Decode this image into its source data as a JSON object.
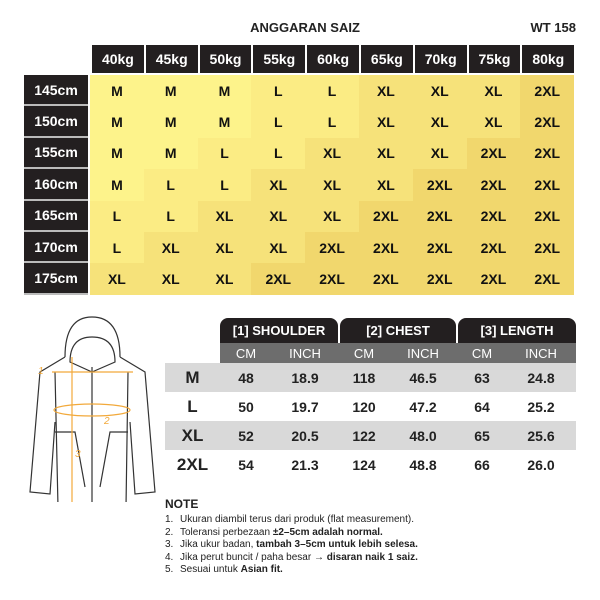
{
  "header": {
    "title": "ANGGARAN SAIZ",
    "code": "WT 158"
  },
  "weights": [
    "40kg",
    "45kg",
    "50kg",
    "55kg",
    "60kg",
    "65kg",
    "70kg",
    "75kg",
    "80kg"
  ],
  "heights": [
    "145cm",
    "150cm",
    "155cm",
    "160cm",
    "165cm",
    "170cm",
    "175cm"
  ],
  "sizes": [
    [
      "M",
      "M",
      "M",
      "L",
      "L",
      "XL",
      "XL",
      "XL",
      "2XL"
    ],
    [
      "M",
      "M",
      "M",
      "L",
      "L",
      "XL",
      "XL",
      "XL",
      "2XL"
    ],
    [
      "M",
      "M",
      "L",
      "L",
      "XL",
      "XL",
      "XL",
      "2XL",
      "2XL"
    ],
    [
      "M",
      "L",
      "L",
      "XL",
      "XL",
      "XL",
      "2XL",
      "2XL",
      "2XL"
    ],
    [
      "L",
      "L",
      "XL",
      "XL",
      "XL",
      "2XL",
      "2XL",
      "2XL",
      "2XL"
    ],
    [
      "L",
      "XL",
      "XL",
      "XL",
      "2XL",
      "2XL",
      "2XL",
      "2XL",
      "2XL"
    ],
    [
      "XL",
      "XL",
      "XL",
      "2XL",
      "2XL",
      "2XL",
      "2XL",
      "2XL",
      "2XL"
    ]
  ],
  "colors": {
    "M": "#fdf38b",
    "L": "#fbec84",
    "XL": "#f6e27a",
    "2XL": "#f1d76d",
    "header": "#231f20",
    "accent": "#f2a93b"
  },
  "measure": {
    "groups": [
      "[1] SHOULDER",
      "[2] CHEST",
      "[3] LENGTH"
    ],
    "units": [
      "CM",
      "INCH",
      "CM",
      "INCH",
      "CM",
      "INCH"
    ],
    "rows": [
      {
        "size": "M",
        "values": [
          "48",
          "18.9",
          "118",
          "46.5",
          "63",
          "24.8"
        ]
      },
      {
        "size": "L",
        "values": [
          "50",
          "19.7",
          "120",
          "47.2",
          "64",
          "25.2"
        ]
      },
      {
        "size": "XL",
        "values": [
          "52",
          "20.5",
          "122",
          "48.0",
          "65",
          "25.6"
        ]
      },
      {
        "size": "2XL",
        "values": [
          "54",
          "21.3",
          "124",
          "48.8",
          "66",
          "26.0"
        ]
      }
    ]
  },
  "diagram": {
    "labels": [
      "1",
      "2",
      "3"
    ]
  },
  "notes": {
    "title": "NOTE",
    "items": [
      {
        "n": "1.",
        "pre": "Ukuran diambil terus dari produk (flat measurement).",
        "bold": "",
        "post": ""
      },
      {
        "n": "2.",
        "pre": "Toleransi perbezaan ",
        "bold": "±2–5cm adalah normal.",
        "post": ""
      },
      {
        "n": "3.",
        "pre": "Jika ukur badan, ",
        "bold": "tambah 3–5cm untuk lebih selesa.",
        "post": ""
      },
      {
        "n": "4.",
        "pre": "Jika perut buncit / paha besar → ",
        "bold": "disaran naik 1 saiz.",
        "post": ""
      },
      {
        "n": "5.",
        "pre": "Sesuai untuk ",
        "bold": "Asian fit.",
        "post": ""
      }
    ]
  }
}
